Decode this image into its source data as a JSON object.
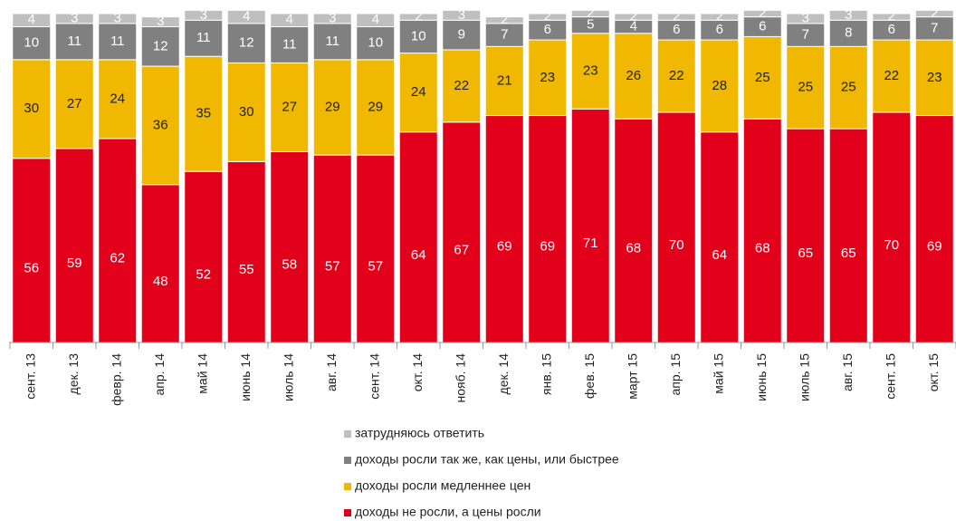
{
  "chart_data": {
    "type": "stacked_bar",
    "categories": [
      "сент. 13",
      "дек. 13",
      "февр. 14",
      "апр. 14",
      "май 14",
      "июнь 14",
      "июль 14",
      "авг. 14",
      "сент. 14",
      "окт. 14",
      "нояб. 14",
      "дек. 14",
      "янв. 15",
      "фев. 15",
      "март 15",
      "апр. 15",
      "май 15",
      "июнь 15",
      "июль 15",
      "авг. 15",
      "сент. 15",
      "окт. 15"
    ],
    "series": [
      {
        "name": "доходы не росли, а цены росли",
        "color": "#e2001a",
        "values": [
          56,
          59,
          62,
          48,
          52,
          55,
          58,
          57,
          57,
          64,
          67,
          69,
          69,
          71,
          68,
          70,
          64,
          68,
          65,
          65,
          70,
          69
        ]
      },
      {
        "name": "доходы росли медленнее цен",
        "color": "#f0b800",
        "values": [
          30,
          27,
          24,
          36,
          35,
          30,
          27,
          29,
          29,
          24,
          22,
          21,
          23,
          23,
          26,
          22,
          28,
          25,
          25,
          25,
          22,
          23
        ]
      },
      {
        "name": "доходы росли так же, как цены, или быстрее",
        "color": "#808080",
        "values": [
          10,
          11,
          11,
          12,
          11,
          12,
          11,
          11,
          10,
          10,
          9,
          7,
          6,
          5,
          4,
          6,
          6,
          6,
          7,
          8,
          6,
          7
        ]
      },
      {
        "name": "затрудняюсь ответить",
        "color": "#bfbfbf",
        "values": [
          4,
          3,
          3,
          3,
          3,
          4,
          4,
          3,
          4,
          2,
          3,
          2,
          2,
          2,
          2,
          2,
          2,
          2,
          3,
          3,
          2,
          2
        ]
      }
    ],
    "ylim": [
      0,
      100
    ]
  }
}
